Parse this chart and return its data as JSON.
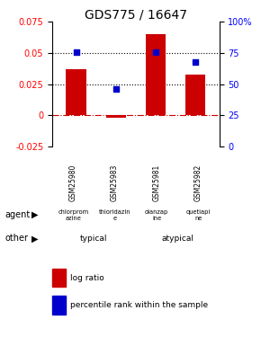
{
  "title": "GDS775 / 16647",
  "samples": [
    "GSM25980",
    "GSM25983",
    "GSM25981",
    "GSM25982"
  ],
  "log_ratios": [
    0.037,
    -0.002,
    0.065,
    0.033
  ],
  "pct_scaled": [
    0.0505,
    0.0215,
    0.0505,
    0.043
  ],
  "agents": [
    "chlorprom\nazine",
    "thioridazin\ne",
    "olanzap\nine",
    "quetiapi\nne"
  ],
  "other_groups": [
    [
      "typical",
      2
    ],
    [
      "atypical",
      2
    ]
  ],
  "other_color": "#ee82ee",
  "ylim_left": [
    -0.025,
    0.075
  ],
  "ylim_right": [
    0,
    100
  ],
  "yticks_left": [
    -0.025,
    0,
    0.025,
    0.05,
    0.075
  ],
  "ytick_labels_left": [
    "-0.025",
    "0",
    "0.025",
    "0.05",
    "0.075"
  ],
  "yticks_right": [
    0,
    25,
    50,
    75,
    100
  ],
  "ytick_labels_right": [
    "0",
    "25",
    "50",
    "75",
    "100%"
  ],
  "bar_color": "#cc0000",
  "dot_color": "#0000cc",
  "background_color": "#ffffff",
  "title_fontsize": 10,
  "tick_fontsize": 7,
  "bar_width": 0.5
}
